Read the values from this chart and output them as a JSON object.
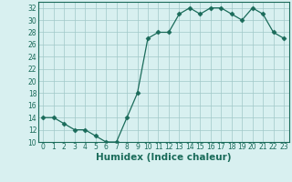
{
  "x": [
    0,
    1,
    2,
    3,
    4,
    5,
    6,
    7,
    8,
    9,
    10,
    11,
    12,
    13,
    14,
    15,
    16,
    17,
    18,
    19,
    20,
    21,
    22,
    23
  ],
  "y": [
    14,
    14,
    13,
    12,
    12,
    11,
    10,
    10,
    14,
    18,
    27,
    28,
    28,
    31,
    32,
    31,
    32,
    32,
    31,
    30,
    32,
    31,
    28,
    27
  ],
  "line_color": "#1a6b5a",
  "marker": "D",
  "marker_size": 2.5,
  "bg_color": "#d8f0f0",
  "grid_color": "#a0c8c8",
  "xlabel": "Humidex (Indice chaleur)",
  "ylim": [
    10,
    33
  ],
  "xlim": [
    -0.5,
    23.5
  ],
  "yticks": [
    10,
    12,
    14,
    16,
    18,
    20,
    22,
    24,
    26,
    28,
    30,
    32
  ],
  "xticks": [
    0,
    1,
    2,
    3,
    4,
    5,
    6,
    7,
    8,
    9,
    10,
    11,
    12,
    13,
    14,
    15,
    16,
    17,
    18,
    19,
    20,
    21,
    22,
    23
  ],
  "tick_fontsize": 5.5,
  "xlabel_fontsize": 7.5,
  "xlabel_bold": true,
  "linewidth": 0.9
}
